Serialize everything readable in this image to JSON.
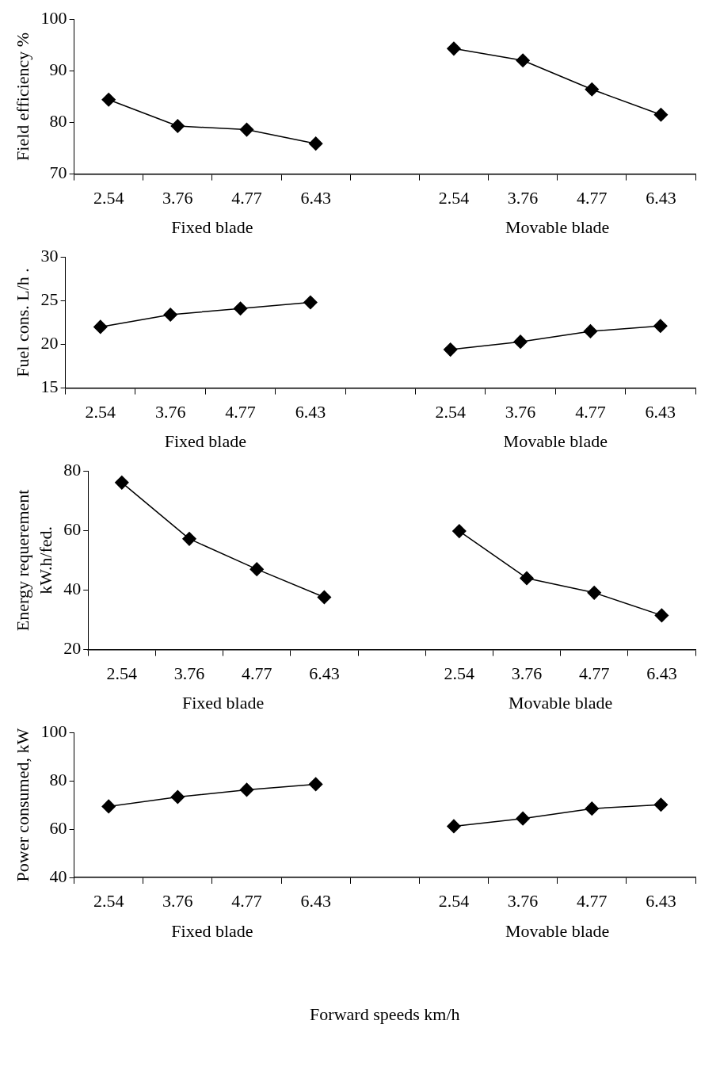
{
  "chart_data": [
    {
      "type": "line",
      "ylabel": "Field efficiency %",
      "categories": [
        "2.54",
        "3.76",
        "4.77",
        "6.43",
        null,
        "2.54",
        "3.76",
        "4.77",
        "6.43"
      ],
      "ylim": [
        70,
        100
      ],
      "yticks": [
        70,
        80,
        90,
        100
      ],
      "marker": "diamond",
      "line_style": "solid",
      "legend": false,
      "series": [
        {
          "color": "#000000",
          "values": [
            84.4,
            79.3,
            78.6,
            75.9,
            null,
            94.3,
            92.0,
            86.4,
            81.5
          ]
        }
      ],
      "annotations": [
        "Fixed blade",
        "Movable blade"
      ]
    },
    {
      "type": "line",
      "ylabel": "Fuel cons. L/h .",
      "categories": [
        "2.54",
        "3.76",
        "4.77",
        "6.43",
        null,
        "2.54",
        "3.76",
        "4.77",
        "6.43"
      ],
      "ylim": [
        15,
        30
      ],
      "yticks": [
        15,
        20,
        25,
        30
      ],
      "marker": "diamond",
      "line_style": "solid",
      "legend": false,
      "series": [
        {
          "color": "#000000",
          "values": [
            22.0,
            23.4,
            24.1,
            24.8,
            null,
            19.4,
            20.3,
            21.5,
            22.1
          ]
        }
      ],
      "annotations": [
        "Fixed blade",
        "Movable blade"
      ]
    },
    {
      "type": "line",
      "ylabel": "Energy requerement kW.h/fed.",
      "categories": [
        "2.54",
        "3.76",
        "4.77",
        "6.43",
        null,
        "2.54",
        "3.76",
        "4.77",
        "6.43"
      ],
      "ylim": [
        20,
        80
      ],
      "yticks": [
        20,
        40,
        60,
        80
      ],
      "marker": "diamond",
      "line_style": "solid",
      "legend": false,
      "series": [
        {
          "color": "#000000",
          "values": [
            76.1,
            57.2,
            47.0,
            37.6,
            null,
            59.8,
            44.0,
            39.1,
            31.5
          ]
        }
      ],
      "annotations": [
        "Fixed blade",
        "Movable blade"
      ]
    },
    {
      "type": "line",
      "ylabel": "Power consumed, kW",
      "xlabel": "Forward speeds km/h",
      "categories": [
        "2.54",
        "3.76",
        "4.77",
        "6.43",
        null,
        "2.54",
        "3.76",
        "4.77",
        "6.43"
      ],
      "ylim": [
        40,
        100
      ],
      "yticks": [
        40,
        60,
        80,
        100
      ],
      "marker": "diamond",
      "line_style": "solid",
      "legend": false,
      "series": [
        {
          "color": "#000000",
          "values": [
            69.4,
            73.3,
            76.3,
            78.6,
            null,
            61.2,
            64.4,
            68.5,
            70.1
          ]
        }
      ],
      "annotations": [
        "Fixed blade",
        "Movable blade"
      ]
    }
  ]
}
